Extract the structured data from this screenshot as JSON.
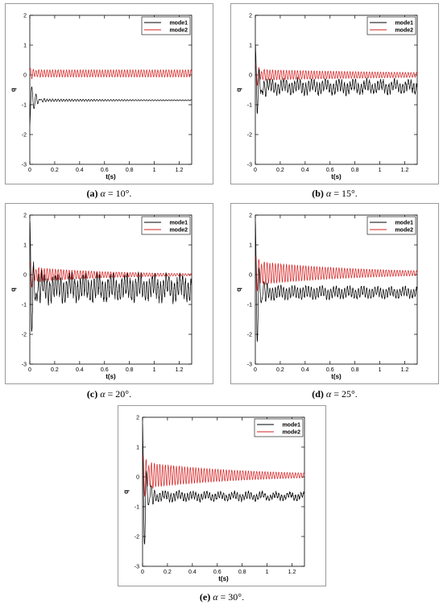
{
  "chart_data": [
    {
      "type": "line",
      "caption_label": "(a)",
      "caption_alpha": "α",
      "caption_value": " = 10°.",
      "xlabel": "t(s)",
      "ylabel": "q",
      "xlim": [
        0,
        1.3
      ],
      "ylim": [
        -3,
        2
      ],
      "xticks": [
        "0",
        "0.2",
        "0.4",
        "0.6",
        "0.8",
        "1",
        "1.2"
      ],
      "yticks": [
        "2",
        "1",
        "0",
        "-1",
        "-2",
        "-3"
      ],
      "legend_position": "top-right",
      "series": [
        {
          "name": "mode1",
          "color": "#000000",
          "initial_value": -1.7,
          "offset": -0.85,
          "amplitude": 0.05,
          "decay": 1.0,
          "noise": 0.0
        },
        {
          "name": "mode2",
          "color": "#d62020",
          "initial_value": 0.15,
          "offset": 0.05,
          "amplitude": 0.12,
          "decay": 0.0,
          "noise": 0.0
        }
      ]
    },
    {
      "type": "line",
      "caption_label": "(b)",
      "caption_alpha": "α",
      "caption_value": " = 15°.",
      "xlabel": "t(s)",
      "ylabel": "q",
      "xlim": [
        0,
        1.3
      ],
      "ylim": [
        -3,
        2
      ],
      "xticks": [
        "0",
        "0.2",
        "0.4",
        "0.6",
        "0.8",
        "1",
        "1.2"
      ],
      "yticks": [
        "2",
        "1",
        "0",
        "-1",
        "-2",
        "-3"
      ],
      "legend_position": "top-right",
      "series": [
        {
          "name": "mode1",
          "color": "#000000",
          "initial_value": 0.9,
          "offset": -0.4,
          "amplitude": 0.2,
          "decay": 0.2,
          "noise": 0.15
        },
        {
          "name": "mode2",
          "color": "#d62020",
          "initial_value": 0.3,
          "offset": 0.0,
          "amplitude": 0.18,
          "decay": 0.6,
          "noise": 0.0
        }
      ]
    },
    {
      "type": "line",
      "caption_label": "(c)",
      "caption_alpha": "α",
      "caption_value": " = 20°.",
      "xlabel": "t(s)",
      "ylabel": "q",
      "xlim": [
        0,
        1.3
      ],
      "ylim": [
        -3,
        2
      ],
      "xticks": [
        "0",
        "0.2",
        "0.4",
        "0.6",
        "0.8",
        "1",
        "1.2"
      ],
      "yticks": [
        "2",
        "1",
        "0",
        "-1",
        "-2",
        "-3"
      ],
      "legend_position": "top-right",
      "series": [
        {
          "name": "mode1",
          "color": "#000000",
          "initial_value": 1.6,
          "offset": -0.45,
          "amplitude": 0.35,
          "decay": 0.1,
          "noise": 0.25
        },
        {
          "name": "mode2",
          "color": "#d62020",
          "initial_value": 0.3,
          "offset": 0.0,
          "amplitude": 0.25,
          "decay": 1.5,
          "noise": 0.0
        }
      ]
    },
    {
      "type": "line",
      "caption_label": "(d)",
      "caption_alpha": "α",
      "caption_value": " = 25°.",
      "xlabel": "t(s)",
      "ylabel": "q",
      "xlim": [
        0,
        1.3
      ],
      "ylim": [
        -3,
        2
      ],
      "xticks": [
        "0",
        "0.2",
        "0.4",
        "0.6",
        "0.8",
        "1",
        "1.2"
      ],
      "yticks": [
        "2",
        "1",
        "0",
        "-1",
        "-2",
        "-3"
      ],
      "legend_position": "top-right",
      "series": [
        {
          "name": "mode1",
          "color": "#000000",
          "initial_value": 1.8,
          "offset": -0.6,
          "amplitude": 0.2,
          "decay": 0.3,
          "noise": 0.1
        },
        {
          "name": "mode2",
          "color": "#d62020",
          "initial_value": 0.4,
          "offset": 0.05,
          "amplitude": 0.4,
          "decay": 1.2,
          "noise": 0.0
        }
      ]
    },
    {
      "type": "line",
      "caption_label": "(e)",
      "caption_alpha": "α",
      "caption_value": " = 30°.",
      "xlabel": "t(s)",
      "ylabel": "q",
      "xlim": [
        0,
        1.3
      ],
      "ylim": [
        -3,
        2
      ],
      "xticks": [
        "0",
        "0.2",
        "0.4",
        "0.6",
        "0.8",
        "1",
        "1.2"
      ],
      "yticks": [
        "2",
        "1",
        "0",
        "-1",
        "-2",
        "-3"
      ],
      "legend_position": "top-right",
      "series": [
        {
          "name": "mode1",
          "color": "#000000",
          "initial_value": 1.8,
          "offset": -0.65,
          "amplitude": 0.15,
          "decay": 0.5,
          "noise": 0.1
        },
        {
          "name": "mode2",
          "color": "#d62020",
          "initial_value": 0.5,
          "offset": 0.05,
          "amplitude": 0.45,
          "decay": 1.3,
          "noise": 0.0
        }
      ]
    }
  ]
}
